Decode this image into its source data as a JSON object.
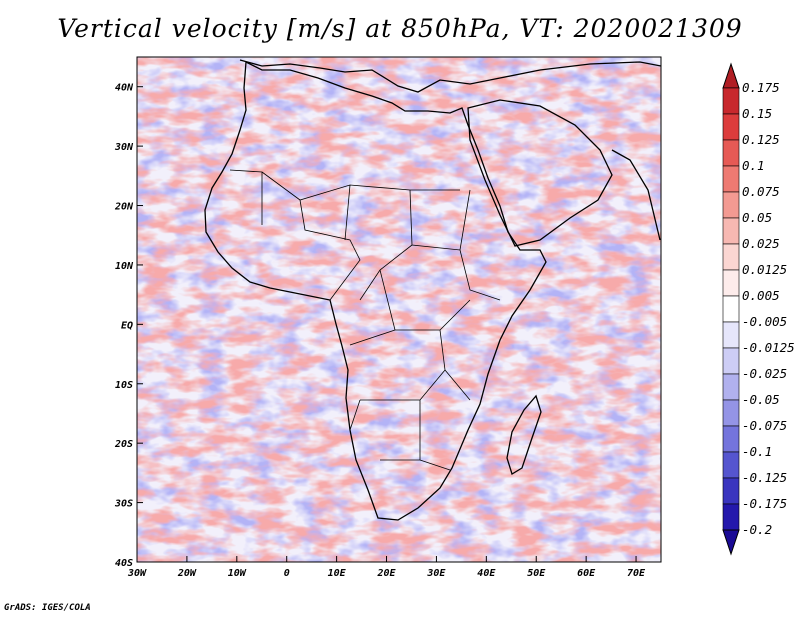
{
  "chart_data": {
    "type": "heatmap",
    "title": "Vertical velocity [m/s] at 850hPa, VT: 2020021309",
    "xlabel": "",
    "ylabel": "",
    "xlim": [
      -30,
      75
    ],
    "ylim": [
      -40,
      45
    ],
    "x_ticks": [
      {
        "value": -30,
        "label": "30W"
      },
      {
        "value": -20,
        "label": "20W"
      },
      {
        "value": -10,
        "label": "10W"
      },
      {
        "value": 0,
        "label": "0"
      },
      {
        "value": 10,
        "label": "10E"
      },
      {
        "value": 20,
        "label": "20E"
      },
      {
        "value": 30,
        "label": "30E"
      },
      {
        "value": 40,
        "label": "40E"
      },
      {
        "value": 50,
        "label": "50E"
      },
      {
        "value": 60,
        "label": "60E"
      },
      {
        "value": 70,
        "label": "70E"
      }
    ],
    "y_ticks": [
      {
        "value": 40,
        "label": "40N"
      },
      {
        "value": 30,
        "label": "30N"
      },
      {
        "value": 20,
        "label": "20N"
      },
      {
        "value": 10,
        "label": "10N"
      },
      {
        "value": 0,
        "label": "EQ"
      },
      {
        "value": -10,
        "label": "10S"
      },
      {
        "value": -20,
        "label": "20S"
      },
      {
        "value": -30,
        "label": "30S"
      },
      {
        "value": -40,
        "label": "40S"
      }
    ],
    "colorbar": {
      "levels": [
        "0.175",
        "0.15",
        "0.125",
        "0.1",
        "0.075",
        "0.05",
        "0.025",
        "0.0125",
        "0.005",
        "-0.005",
        "-0.0125",
        "-0.025",
        "-0.05",
        "-0.075",
        "-0.1",
        "-0.125",
        "-0.175",
        "-0.2"
      ],
      "colors": [
        "#b01e24",
        "#c8282d",
        "#dc3c3c",
        "#e65a55",
        "#ee7a72",
        "#f39a92",
        "#f7b8b2",
        "#fbd6d2",
        "#fdeceb",
        "#ffffff",
        "#e6e6fb",
        "#cdcdf5",
        "#b1b1ee",
        "#9494e6",
        "#7474dc",
        "#5555cf",
        "#3a35bf",
        "#2418ac",
        "#1a0a95"
      ]
    }
  },
  "credit": "GrADS: IGES/COLA",
  "colors": {
    "frame": "#000000",
    "coast": "#000000",
    "field_bg": "#f2f0fb"
  }
}
